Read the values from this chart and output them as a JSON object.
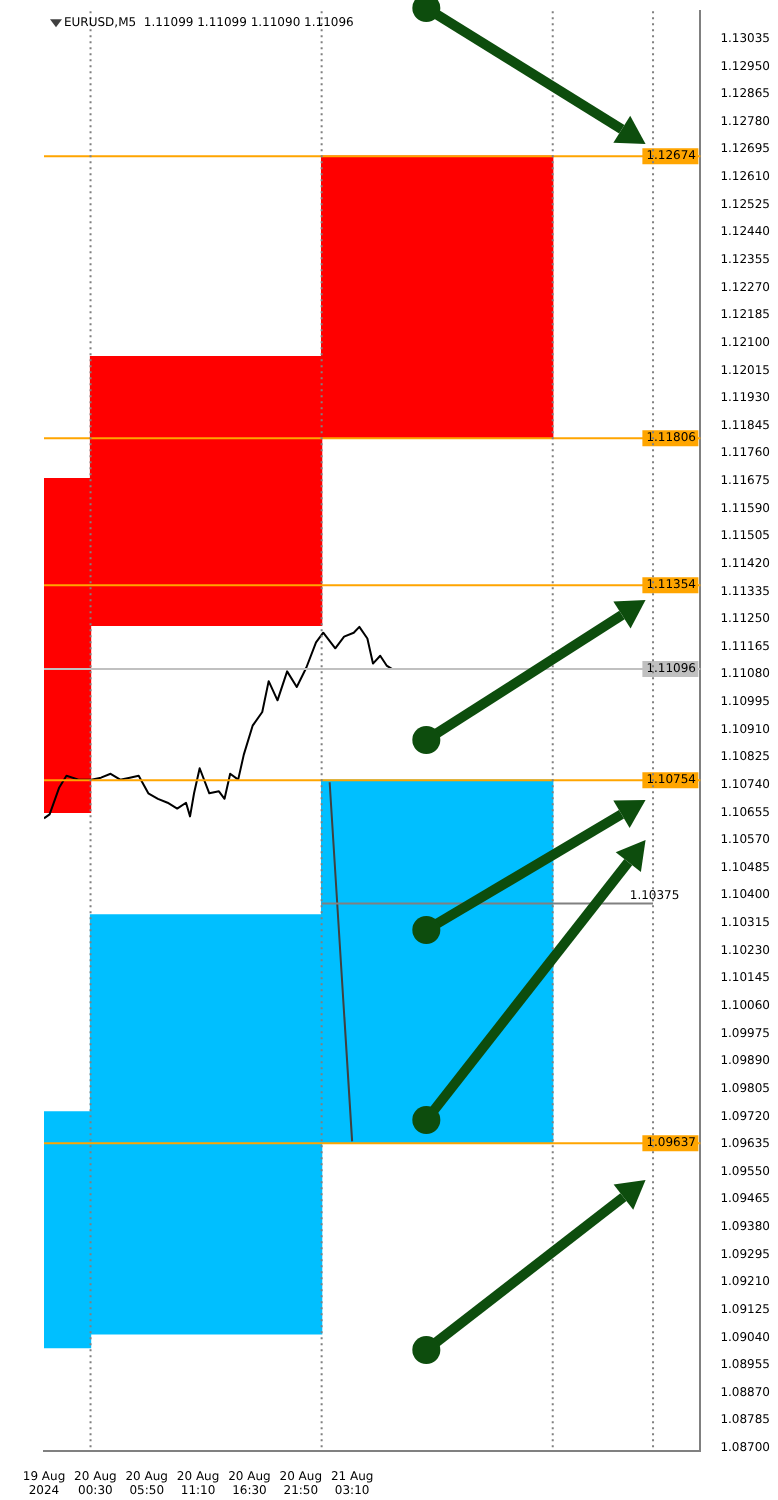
{
  "chart_data": {
    "type": "line",
    "title": "EURUSD,M5  1.11099 1.11099 1.11090 1.11096",
    "grid": false,
    "marker": "none",
    "series": [
      {
        "type": "bar",
        "color": "#ff0000",
        "x": [
          "2024-08-19T21:35",
          "2024-08-20T12:00",
          "2024-08-21T12:00"
        ],
        "base": [
          1.10655,
          1.11231,
          1.11806
        ],
        "values": [
          0.01027,
          0.00826,
          0.00868
        ]
      },
      {
        "type": "bar",
        "color": "#00bfff",
        "x": [
          "2024-08-19T21:35",
          "2024-08-20T12:00",
          "2024-08-21T12:00"
        ],
        "base": [
          1.09009,
          1.09051,
          1.09637
        ],
        "values": [
          0.00725,
          0.01289,
          0.01117
        ]
      },
      {
        "color": "#808080",
        "x": [
          "2024-08-21T00:00",
          "2024-08-22T10:25"
        ],
        "values": [
          1.10375,
          1.10375
        ]
      },
      {
        "color": "#404040",
        "x": [
          "2024-08-21T00:50",
          "2024-08-21T03:10"
        ],
        "values": [
          1.10748,
          1.09643
        ]
      },
      {
        "color": "#000000",
        "x": [
          "2024-08-19T19:10",
          "2024-08-19T19:45",
          "2024-08-19T20:45",
          "2024-08-19T21:30",
          "2024-08-19T22:45",
          "2024-08-20T00:05",
          "2024-08-20T01:05",
          "2024-08-20T02:05",
          "2024-08-20T03:05",
          "2024-08-20T04:05",
          "2024-08-20T05:00",
          "2024-08-20T06:00",
          "2024-08-20T07:00",
          "2024-08-20T08:00",
          "2024-08-20T09:00",
          "2024-08-20T09:55",
          "2024-08-20T10:20",
          "2024-08-20T10:45",
          "2024-08-20T11:20",
          "2024-08-20T12:20",
          "2024-08-20T13:20",
          "2024-08-20T13:55",
          "2024-08-20T14:30",
          "2024-08-20T15:20",
          "2024-08-20T15:55",
          "2024-08-20T16:50",
          "2024-08-20T16:55",
          "2024-08-20T17:50",
          "2024-08-20T18:30",
          "2024-08-20T19:25",
          "2024-08-20T20:25",
          "2024-08-20T21:25",
          "2024-08-20T22:25",
          "2024-08-20T23:25",
          "2024-08-21T00:10",
          "2024-08-21T01:25",
          "2024-08-21T02:20",
          "2024-08-21T03:20",
          "2024-08-21T03:55",
          "2024-08-21T04:45",
          "2024-08-21T05:20",
          "2024-08-21T06:05",
          "2024-08-21T06:45",
          "2024-08-21T07:20"
        ],
        "values": [
          1.10637,
          1.10649,
          1.10732,
          1.10768,
          1.10756,
          1.10756,
          1.10762,
          1.10774,
          1.10756,
          1.10762,
          1.10768,
          1.10714,
          1.10697,
          1.10685,
          1.10667,
          1.10685,
          1.10643,
          1.10714,
          1.10791,
          1.10714,
          1.1072,
          1.10697,
          1.10774,
          1.10756,
          1.10833,
          1.10922,
          1.10922,
          1.10964,
          1.11059,
          1.11,
          1.11089,
          1.11041,
          1.11101,
          1.11178,
          1.11208,
          1.1116,
          1.11196,
          1.11208,
          1.11226,
          1.1119,
          1.11113,
          1.11137,
          1.11107,
          1.11096
        ]
      }
    ],
    "xlim": [
      "2024-08-19T19:10",
      "2024-08-22T15:20"
    ],
    "xticks": [
      {
        "value": "2024-08-19T19:10",
        "label": "19 Aug 2024"
      },
      {
        "value": "2024-08-20T00:30",
        "label": "20 Aug 00:30"
      },
      {
        "value": "2024-08-20T05:50",
        "label": "20 Aug 05:50"
      },
      {
        "value": "2024-08-20T11:10",
        "label": "20 Aug 11:10"
      },
      {
        "value": "2024-08-20T16:30",
        "label": "20 Aug 16:30"
      },
      {
        "value": "2024-08-20T21:50",
        "label": "20 Aug 21:50"
      },
      {
        "value": "2024-08-21T03:10",
        "label": "21 Aug 03:10"
      }
    ],
    "ylim": [
      1.0869,
      1.1312
    ],
    "yticks": [
      1.13035,
      {
        "value": 1.1295,
        "label": "1.12950"
      },
      1.12865,
      {
        "value": 1.1278,
        "label": "1.12780"
      },
      1.12695,
      {
        "value": 1.1261,
        "label": "1.12610"
      },
      1.12525,
      {
        "value": 1.1244,
        "label": "1.12440"
      },
      1.12355,
      {
        "value": 1.1227,
        "label": "1.12270"
      },
      1.12185,
      {
        "value": 1.121,
        "label": "1.12100"
      },
      1.12015,
      {
        "value": 1.1193,
        "label": "1.11930"
      },
      1.11845,
      {
        "value": 1.1176,
        "label": "1.11760"
      },
      1.11675,
      {
        "value": 1.1159,
        "label": "1.11590"
      },
      1.11505,
      {
        "value": 1.1142,
        "label": "1.11420"
      },
      1.11335,
      {
        "value": 1.1125,
        "label": "1.11250"
      },
      1.11165,
      {
        "value": 1.1108,
        "label": "1.11080"
      },
      1.10995,
      {
        "value": 1.1091,
        "label": "1.10910"
      },
      1.10825,
      {
        "value": 1.1074,
        "label": "1.10740"
      },
      1.10655,
      {
        "value": 1.1057,
        "label": "1.10570"
      },
      1.10485,
      {
        "value": 1.104,
        "label": "1.10400"
      },
      1.10315,
      {
        "value": 1.1023,
        "label": "1.10230"
      },
      1.10145,
      {
        "value": 1.1006,
        "label": "1.10060"
      },
      1.09975,
      {
        "value": 1.0989,
        "label": "1.09890"
      },
      1.09805,
      {
        "value": 1.0972,
        "label": "1.09720"
      },
      1.09635,
      {
        "value": 1.0955,
        "label": "1.09550"
      },
      1.09465,
      {
        "value": 1.0938,
        "label": "1.09380"
      },
      1.09295,
      {
        "value": 1.0921,
        "label": "1.09210"
      },
      1.09125,
      {
        "value": 1.0904,
        "label": "1.09040"
      },
      1.08955,
      {
        "value": 1.0887,
        "label": "1.08870"
      },
      1.08785,
      {
        "value": 1.087,
        "label": "1.08700"
      }
    ],
    "ref_lines": [
      {
        "axis": "y",
        "value": 1.12674,
        "label": "1.12674",
        "color": "#ffa500"
      },
      {
        "axis": "y",
        "value": 1.11806,
        "label": "1.11806",
        "color": "#ffa500"
      },
      {
        "axis": "y",
        "value": 1.11354,
        "label": "1.11354",
        "color": "#ffa500"
      },
      {
        "axis": "y",
        "value": 1.10754,
        "label": "1.10754",
        "color": "#ffa500"
      },
      {
        "axis": "y",
        "value": 1.09637,
        "label": "1.09637",
        "color": "#ffa500"
      },
      {
        "axis": "y",
        "value": 1.11096,
        "label": "1.11096",
        "color": "#c0c0c0"
      },
      {
        "axis": "x",
        "value": "2024-08-20T00:00",
        "color": "#808080",
        "line_style": "dotted"
      },
      {
        "axis": "x",
        "value": "2024-08-21T00:00",
        "color": "#808080",
        "line_style": "dotted"
      },
      {
        "axis": "x",
        "value": "2024-08-22T00:00",
        "color": "#808080",
        "line_style": "dotted"
      },
      {
        "axis": "x",
        "value": "2024-08-22T10:25",
        "color": "#808080",
        "line_style": "dotted"
      }
    ],
    "annotations": [
      {
        "text": "1.10375",
        "x": "2024-08-22T08:00",
        "y": 1.10375
      }
    ]
  }
}
